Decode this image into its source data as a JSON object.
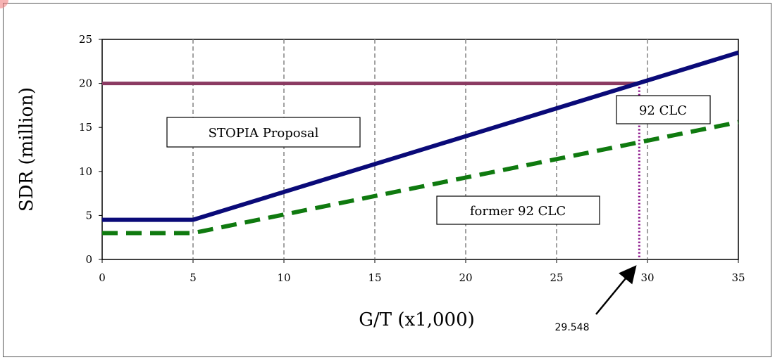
{
  "chart_data": {
    "type": "line",
    "title": "",
    "xlabel": "G/T (x1,000)",
    "ylabel": "SDR (million)",
    "xlim": [
      0,
      35
    ],
    "ylim": [
      0,
      25
    ],
    "x_ticks": [
      0,
      5,
      10,
      15,
      20,
      25,
      30,
      35
    ],
    "y_ticks": [
      0,
      5,
      10,
      15,
      20,
      25
    ],
    "vertical_gridlines_dashed": [
      5,
      10,
      15,
      20,
      25,
      30
    ],
    "series": [
      {
        "name": "STOPIA Proposal",
        "color": "#8b3a62",
        "style": "solid",
        "x": [
          0,
          29.548
        ],
        "y": [
          20,
          20
        ]
      },
      {
        "name": "92 CLC",
        "color": "#0a0a78",
        "style": "solid",
        "x": [
          0,
          5,
          35
        ],
        "y": [
          4.5,
          4.5,
          23.5
        ]
      },
      {
        "name": "former 92 CLC",
        "color": "#0f7a0f",
        "style": "dashed",
        "x": [
          0,
          5,
          35
        ],
        "y": [
          3,
          3,
          15.6
        ]
      }
    ],
    "marker_line": {
      "x": 29.548,
      "color": "#800080",
      "style": "dotted"
    },
    "annotations": [
      {
        "id": "stopia",
        "text": "STOPIA Proposal"
      },
      {
        "id": "clc92",
        "text": "92 CLC"
      },
      {
        "id": "former",
        "text": "former 92 CLC"
      },
      {
        "id": "arrow",
        "text": "29.548"
      }
    ]
  }
}
